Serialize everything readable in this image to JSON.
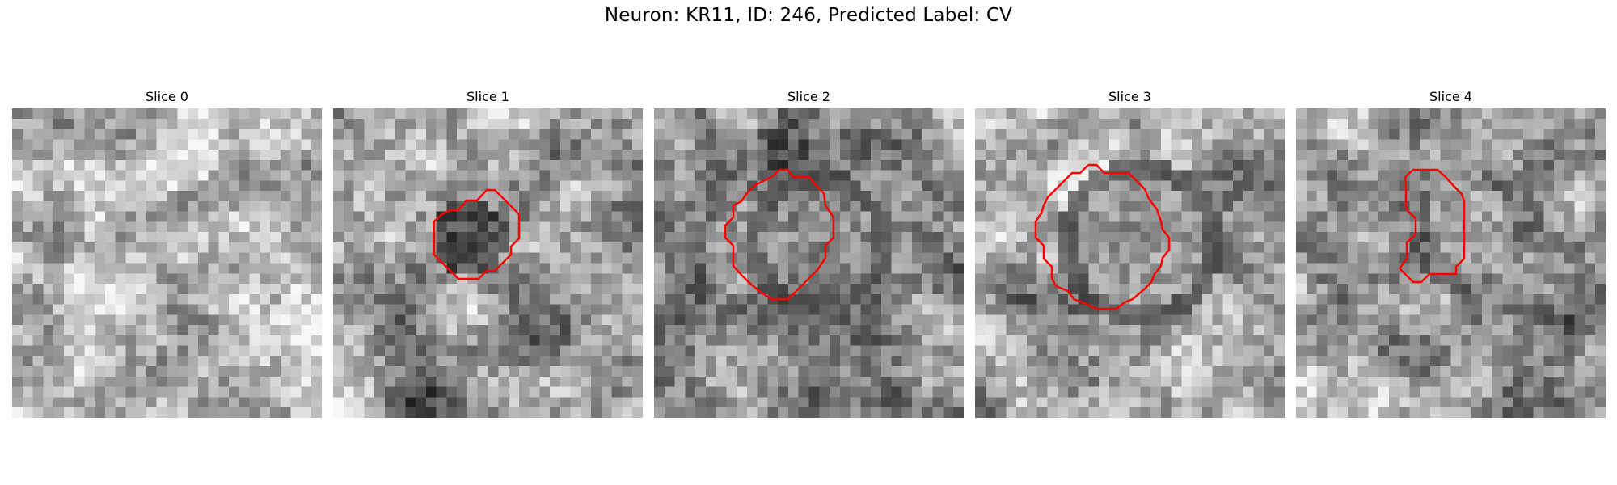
{
  "figure": {
    "title": "Neuron: KR11, ID: 246, Predicted Label: CV"
  },
  "panels": [
    {
      "title": "Slice 0",
      "has_contour": false,
      "contour_color": "#ff0000"
    },
    {
      "title": "Slice 1",
      "has_contour": true,
      "contour_color": "#ff0000"
    },
    {
      "title": "Slice 2",
      "has_contour": true,
      "contour_color": "#ff0000"
    },
    {
      "title": "Slice 3",
      "has_contour": true,
      "contour_color": "#ff0000"
    },
    {
      "title": "Slice 4",
      "has_contour": true,
      "contour_color": "#ff0000"
    }
  ],
  "colormap": "gray"
}
